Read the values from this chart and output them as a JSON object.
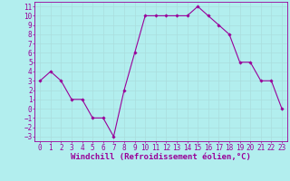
{
  "x": [
    0,
    1,
    2,
    3,
    4,
    5,
    6,
    7,
    8,
    9,
    10,
    11,
    12,
    13,
    14,
    15,
    16,
    17,
    18,
    19,
    20,
    21,
    22,
    23
  ],
  "y": [
    3,
    4,
    3,
    1,
    1,
    -1,
    -1,
    -3,
    2,
    6,
    10,
    10,
    10,
    10,
    10,
    11,
    10,
    9,
    8,
    5,
    5,
    3,
    3,
    0
  ],
  "line_color": "#990099",
  "marker_color": "#990099",
  "bg_color": "#b2eeee",
  "grid_color": "#aadddd",
  "xlabel": "Windchill (Refroidissement éolien,°C)",
  "xlabel_color": "#990099",
  "tick_color": "#990099",
  "spine_color": "#990099",
  "ylim": [
    -3.5,
    11.5
  ],
  "xlim": [
    -0.5,
    23.5
  ],
  "yticks": [
    -3,
    -2,
    -1,
    0,
    1,
    2,
    3,
    4,
    5,
    6,
    7,
    8,
    9,
    10,
    11
  ],
  "xticks": [
    0,
    1,
    2,
    3,
    4,
    5,
    6,
    7,
    8,
    9,
    10,
    11,
    12,
    13,
    14,
    15,
    16,
    17,
    18,
    19,
    20,
    21,
    22,
    23
  ],
  "font_size": 5.5,
  "xlabel_fontsize": 6.5,
  "marker_size": 1.8,
  "line_width": 0.8
}
